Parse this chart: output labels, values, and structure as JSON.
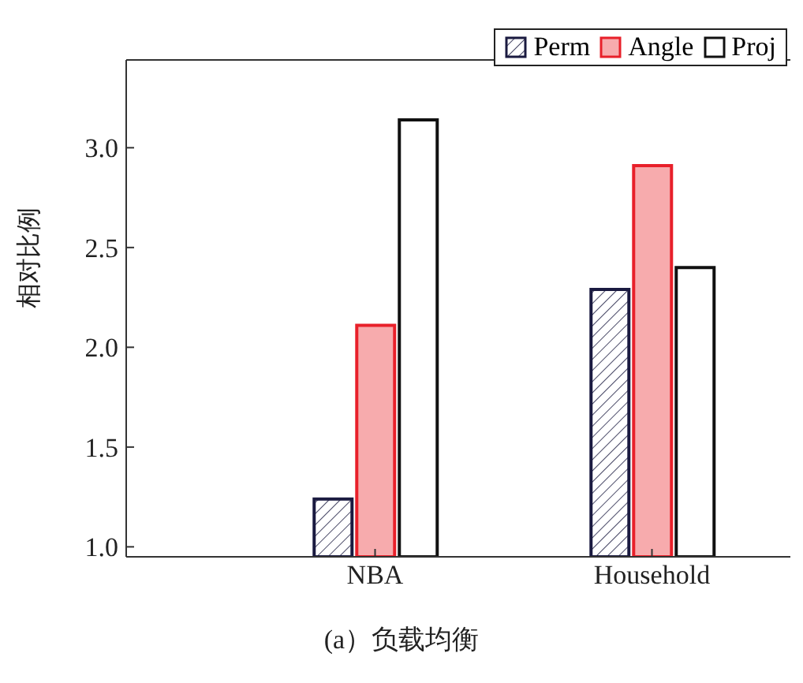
{
  "chart_data": {
    "type": "bar",
    "title": "(a）负载均衡",
    "ylabel": "相对比例",
    "categories": [
      "NBA",
      "Household"
    ],
    "series": [
      {
        "name": "Perm",
        "color": "#1a1a40",
        "values": [
          1.24,
          2.29
        ]
      },
      {
        "name": "Angle",
        "color": "#f7abad",
        "values": [
          2.11,
          2.91
        ]
      },
      {
        "name": "Proj",
        "color": "#ffffff",
        "values": [
          3.14,
          2.4
        ]
      }
    ],
    "ylim": [
      0.95,
      3.44
    ],
    "yticks": [
      {
        "value": 1,
        "label": "1.0"
      },
      {
        "value": 1.5,
        "label": "1.5"
      },
      {
        "value": 2,
        "label": "2.0"
      },
      {
        "value": 2.5,
        "label": "2.5"
      },
      {
        "value": 3,
        "label": "3.0"
      }
    ],
    "legend": "top right",
    "grid": false
  }
}
